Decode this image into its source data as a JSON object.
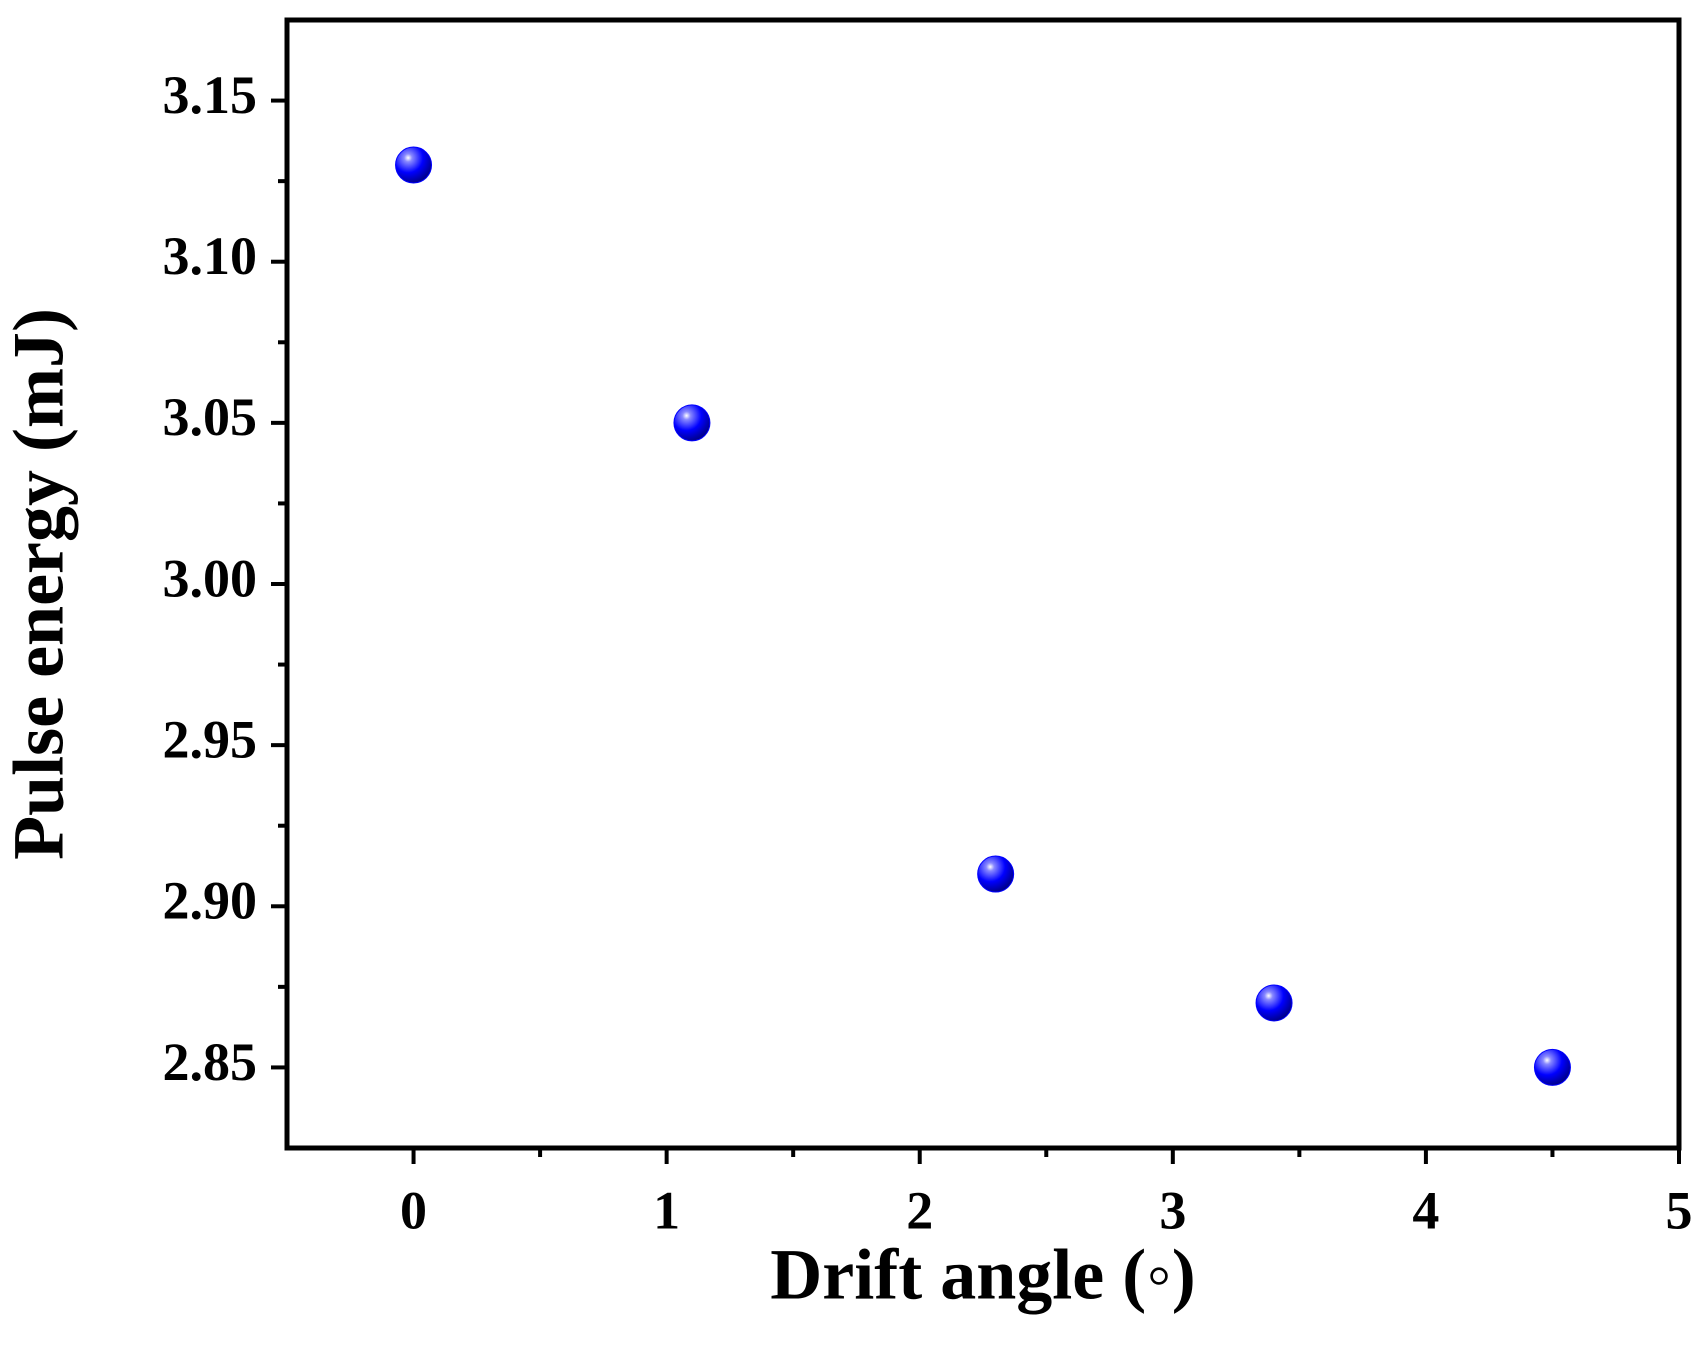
{
  "chart_data": {
    "type": "scatter",
    "x_label": "Drift angle (◦)",
    "y_label": "Pulse energy (mJ)",
    "x": [
      0,
      1.1,
      2.3,
      3.4,
      4.5
    ],
    "values": [
      3.13,
      3.05,
      2.91,
      2.87,
      2.85
    ],
    "color": "#0000ff",
    "xlim": [
      -0.5,
      5
    ],
    "ylim": [
      2.825,
      3.175
    ],
    "xticks": [
      0,
      1,
      2,
      3,
      4,
      5
    ],
    "yticks": [
      {
        "value": 2.85,
        "label": "2.85"
      },
      {
        "value": 2.9,
        "label": "2.90"
      },
      {
        "value": 2.95,
        "label": "2.95"
      },
      {
        "value": 3.0,
        "label": "3.00"
      },
      {
        "value": 3.05,
        "label": "3.05"
      },
      {
        "value": 3.1,
        "label": "3.10"
      },
      {
        "value": 3.15,
        "label": "3.15"
      }
    ],
    "grid": false
  }
}
